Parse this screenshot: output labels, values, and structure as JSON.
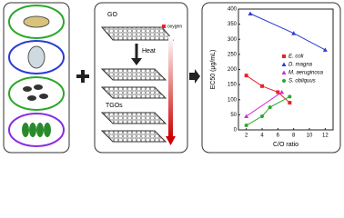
{
  "diagram": {
    "top_label": "GO",
    "arrow_label": "Heat",
    "bottom_label": "TGOs",
    "legend_label": "oxygen"
  },
  "chart_data": {
    "type": "scatter",
    "x_label": "C/O ratio",
    "y_label": "EC50 (μg/mL)",
    "xlim": [
      1,
      13
    ],
    "xticks": [
      2,
      4,
      6,
      8,
      10,
      12
    ],
    "ylim": [
      0,
      400
    ],
    "yticks": [
      0,
      50,
      100,
      150,
      200,
      250,
      300,
      350,
      400
    ],
    "legend": "right",
    "series": [
      {
        "name": "E. coli",
        "color": "#e8222a",
        "marker": "square",
        "x": [
          2,
          4,
          6,
          7.5
        ],
        "values": [
          180,
          145,
          125,
          90
        ]
      },
      {
        "name": "D. magna",
        "color": "#2b3bd6",
        "marker": "triangle",
        "x": [
          2.5,
          8,
          12
        ],
        "values": [
          385,
          320,
          265
        ]
      },
      {
        "name": "M. aeruginosa",
        "color": "#d42bd4",
        "marker": "triangle",
        "x": [
          2,
          6.5
        ],
        "values": [
          45,
          125
        ]
      },
      {
        "name": "S. obliquus",
        "color": "#2aa82a",
        "marker": "circle",
        "x": [
          2,
          4,
          5,
          7.5
        ],
        "values": [
          15,
          45,
          75,
          110
        ]
      }
    ]
  }
}
